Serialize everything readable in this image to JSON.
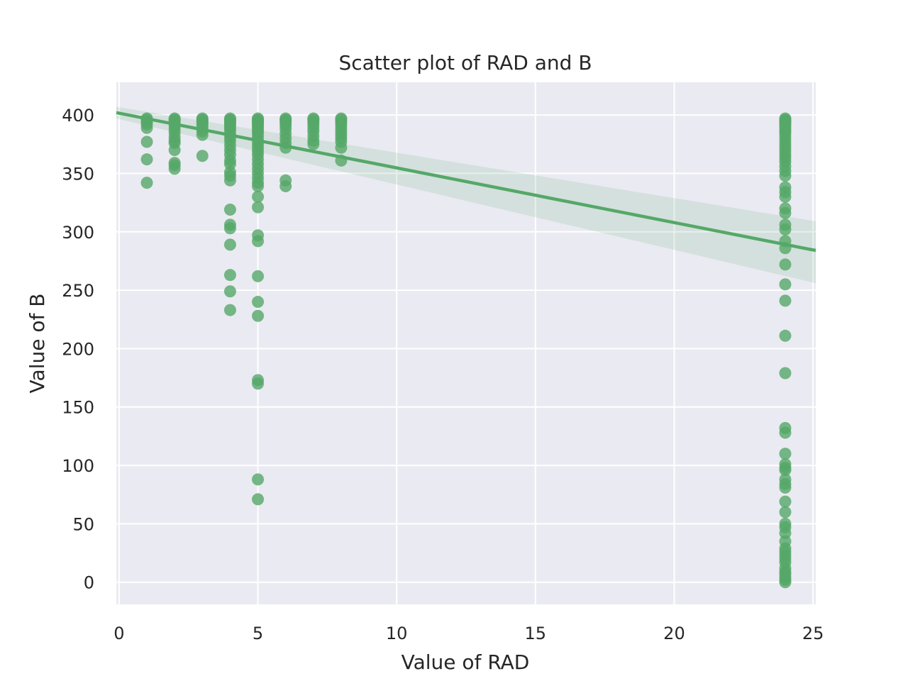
{
  "chart_data": {
    "type": "scatter",
    "title": "Scatter plot of RAD and B",
    "xlabel": "Value of RAD",
    "ylabel": "Value of B",
    "xlim": [
      -0.1,
      25.1
    ],
    "ylim": [
      -19,
      428
    ],
    "x_ticks": [
      0,
      5,
      10,
      15,
      20,
      25
    ],
    "y_ticks": [
      0,
      50,
      100,
      150,
      200,
      250,
      300,
      350,
      400
    ],
    "grid": true,
    "legend": "none",
    "colors": {
      "background": "#eaeaf2",
      "grid": "#ffffff",
      "points": "#55a868",
      "regression_line": "#55a868",
      "confidence_band": "#55a868"
    },
    "regression": {
      "x": [
        -0.1,
        25.1
      ],
      "y": [
        402,
        284
      ],
      "ci_upper": [
        407,
        309
      ],
      "ci_lower": [
        397,
        256
      ]
    },
    "points": [
      {
        "x": 1,
        "y": [
          397,
          396,
          394,
          392,
          389,
          377,
          362,
          342
        ]
      },
      {
        "x": 2,
        "y": [
          397,
          396,
          395,
          393,
          391,
          388,
          385,
          381,
          378,
          376,
          370,
          359,
          357,
          354
        ]
      },
      {
        "x": 3,
        "y": [
          397,
          396,
          395,
          394,
          393,
          391,
          389,
          386,
          383,
          365
        ]
      },
      {
        "x": 4,
        "y": [
          397,
          396,
          395,
          394,
          393,
          391,
          389,
          387,
          384,
          381,
          378,
          374,
          370,
          366,
          361,
          358,
          351,
          348,
          344,
          319,
          306,
          303,
          289,
          263,
          249,
          233
        ]
      },
      {
        "x": 5,
        "y": [
          397,
          396,
          395,
          394,
          393,
          392,
          390,
          388,
          386,
          384,
          381,
          378,
          375,
          372,
          369,
          366,
          362,
          358,
          354,
          350,
          346,
          342,
          339,
          330,
          321,
          297,
          292,
          262,
          240,
          228,
          173,
          170,
          88,
          71
        ]
      },
      {
        "x": 6,
        "y": [
          397,
          396,
          395,
          393,
          391,
          388,
          384,
          380,
          376,
          372,
          344,
          339
        ]
      },
      {
        "x": 7,
        "y": [
          397,
          396,
          394,
          392,
          389,
          386,
          382,
          378,
          375
        ]
      },
      {
        "x": 8,
        "y": [
          397,
          396,
          394,
          392,
          389,
          386,
          383,
          380,
          377,
          372,
          361
        ]
      },
      {
        "x": 24,
        "y": [
          397,
          396,
          395,
          394,
          393,
          392,
          390,
          388,
          386,
          384,
          381,
          378,
          375,
          372,
          369,
          366,
          363,
          360,
          356,
          352,
          348,
          338,
          334,
          330,
          320,
          316,
          306,
          302,
          292,
          286,
          272,
          255,
          241,
          211,
          179,
          132,
          128,
          110,
          101,
          98,
          96,
          88,
          84,
          81,
          69,
          60,
          50,
          47,
          42,
          35,
          29,
          26,
          23,
          20,
          17,
          12,
          9,
          7,
          4,
          2,
          0
        ]
      }
    ]
  }
}
